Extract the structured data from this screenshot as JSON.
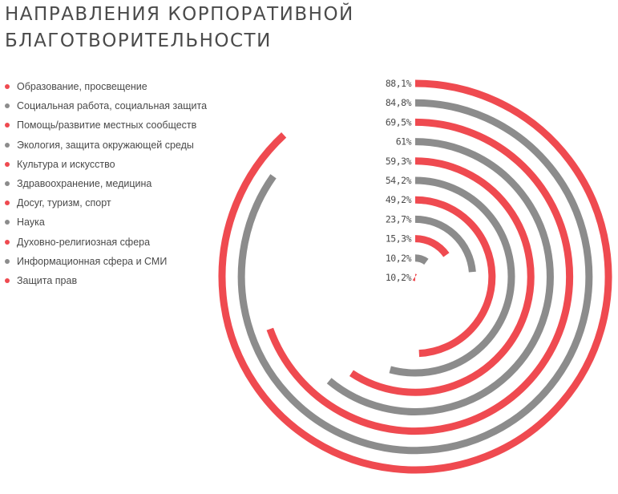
{
  "title": {
    "line1": "НАПРАВЛЕНИЯ КОРПОРАТИВНОЙ",
    "line2": "БЛАГОТВОРИТЕЛЬНОСТИ"
  },
  "colors": {
    "red": "#ef4a50",
    "gray": "#8c8c8c",
    "text": "#4a4a4a"
  },
  "chart_data": {
    "type": "radial-bar",
    "title": "НАПРАВЛЕНИЯ КОРПОРАТИВНОЙ БЛАГОТВОРИТЕЛЬНОСТИ",
    "unit": "%",
    "max": 100,
    "categories": [
      {
        "label": "Образование, просвещение",
        "value": 88.1,
        "value_label": "88,1%",
        "color": "red"
      },
      {
        "label": "Социальная работа, социальная защита",
        "value": 84.8,
        "value_label": "84,8%",
        "color": "gray"
      },
      {
        "label": "Помощь/развитие местных сообществ",
        "value": 69.5,
        "value_label": "69,5%",
        "color": "red"
      },
      {
        "label": "Экология, защита окружающей среды",
        "value": 61,
        "value_label": "61%",
        "color": "gray"
      },
      {
        "label": "Культура и искусство",
        "value": 59.3,
        "value_label": "59,3%",
        "color": "red"
      },
      {
        "label": "Здравоохранение, медицина",
        "value": 54.2,
        "value_label": "54,2%",
        "color": "gray"
      },
      {
        "label": "Досуг, туризм, спорт",
        "value": 49.2,
        "value_label": "49,2%",
        "color": "red"
      },
      {
        "label": "Наука",
        "value": 23.7,
        "value_label": "23,7%",
        "color": "gray"
      },
      {
        "label": "Духовно-религиозная сфера",
        "value": 15.3,
        "value_label": "15,3%",
        "color": "red"
      },
      {
        "label": "Информационная сфера и СМИ",
        "value": 10.2,
        "value_label": "10,2%",
        "color": "gray"
      },
      {
        "label": "Защита прав",
        "value": 10.2,
        "value_label": "10,2%",
        "color": "red"
      }
    ]
  }
}
